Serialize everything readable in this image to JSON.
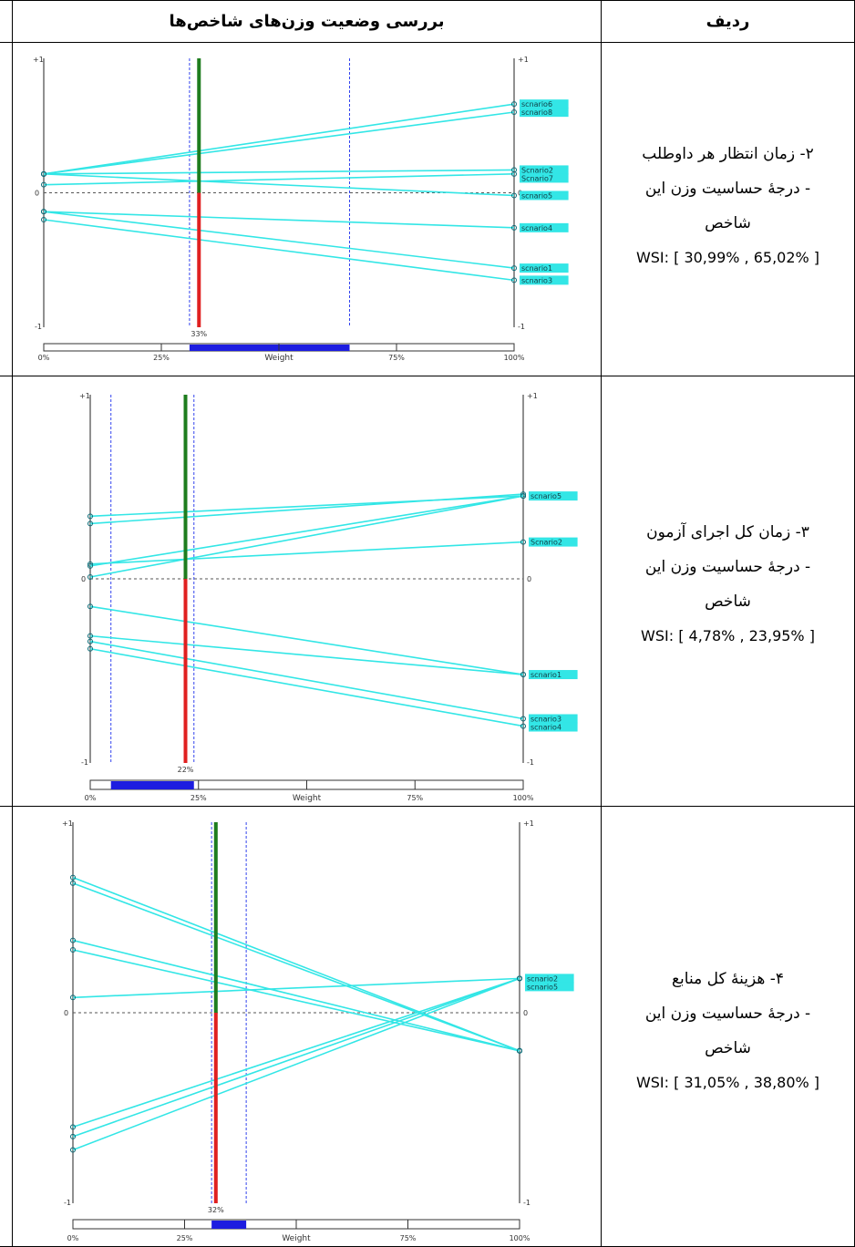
{
  "table": {
    "header_row_label": "ردیف",
    "header_chart": "بررسی وضعیت وزن‌های شاخص‌ها"
  },
  "rows": [
    {
      "title": "۲- زمان انتظار هر داوطلب",
      "line2": "- درجهٔ حساسیت وزن این",
      "line3": "شاخص",
      "wsi": "WSI: [ 30,99% , 65,02% ]"
    },
    {
      "title": "۳- زمان کل اجرای آزمون",
      "line2": "- درجهٔ حساسیت وزن این",
      "line3": "شاخص",
      "wsi": "WSI: [ 4,78% , 23,95% ]"
    },
    {
      "title": "۴- هزینهٔ کل منابع",
      "line2": "- درجهٔ حساسیت وزن این",
      "line3": "شاخص",
      "wsi": "WSI: [ 31,05% , 38,80% ]"
    }
  ],
  "chart_data": [
    {
      "type": "line",
      "xlabel": "Weight",
      "x_ticks": [
        "0%",
        "25%",
        "75%",
        "100%"
      ],
      "y_ticks": [
        "+1",
        "0",
        "-1"
      ],
      "xlim": [
        0,
        100
      ],
      "ylim": [
        -1,
        1
      ],
      "current_weight": 33,
      "current_weight_label": "33%",
      "wsi_range": [
        30.99,
        65.02
      ],
      "series": [
        {
          "name": "scnario6",
          "x": [
            0,
            100
          ],
          "y": [
            0.14,
            0.66
          ]
        },
        {
          "name": "scnario8",
          "x": [
            0,
            100
          ],
          "y": [
            0.14,
            0.6
          ]
        },
        {
          "name": "Scnario2",
          "x": [
            0,
            100
          ],
          "y": [
            0.14,
            0.17
          ]
        },
        {
          "name": "Scnario7",
          "x": [
            0,
            100
          ],
          "y": [
            0.06,
            0.14
          ]
        },
        {
          "name": "scnario5",
          "x": [
            0,
            100
          ],
          "y": [
            0.14,
            -0.02
          ]
        },
        {
          "name": "scnario4",
          "x": [
            0,
            100
          ],
          "y": [
            -0.14,
            -0.26
          ]
        },
        {
          "name": "scnario1",
          "x": [
            0,
            100
          ],
          "y": [
            -0.14,
            -0.56
          ]
        },
        {
          "name": "scnario3",
          "x": [
            0,
            100
          ],
          "y": [
            -0.2,
            -0.65
          ]
        }
      ]
    },
    {
      "type": "line",
      "xlabel": "Weight",
      "x_ticks": [
        "0%",
        "25%",
        "75%",
        "100%"
      ],
      "y_ticks": [
        "+1",
        "0",
        "-1"
      ],
      "xlim": [
        0,
        100
      ],
      "ylim": [
        -1,
        1
      ],
      "current_weight": 22,
      "current_weight_label": "22%",
      "wsi_range": [
        4.78,
        23.95
      ],
      "series": [
        {
          "name": "scnario5",
          "x": [
            0,
            100
          ],
          "y": [
            0.34,
            0.45
          ]
        },
        {
          "name": "",
          "x": [
            0,
            100
          ],
          "y": [
            0.3,
            0.46
          ]
        },
        {
          "name": "Scnario2",
          "x": [
            0,
            100
          ],
          "y": [
            0.08,
            0.2
          ]
        },
        {
          "name": "",
          "x": [
            0,
            100
          ],
          "y": [
            0.07,
            0.45
          ]
        },
        {
          "name": "",
          "x": [
            0,
            100
          ],
          "y": [
            0.01,
            0.45
          ]
        },
        {
          "name": "scnario1",
          "x": [
            0,
            100
          ],
          "y": [
            -0.15,
            -0.52
          ]
        },
        {
          "name": "",
          "x": [
            0,
            100
          ],
          "y": [
            -0.31,
            -0.52
          ]
        },
        {
          "name": "scnario3",
          "x": [
            0,
            100
          ],
          "y": [
            -0.34,
            -0.76
          ]
        },
        {
          "name": "scnario4",
          "x": [
            0,
            100
          ],
          "y": [
            -0.38,
            -0.8
          ]
        }
      ]
    },
    {
      "type": "line",
      "xlabel": "Weight",
      "x_ticks": [
        "0%",
        "25%",
        "75%",
        "100%"
      ],
      "y_ticks": [
        "+1",
        "0",
        "-1"
      ],
      "xlim": [
        0,
        100
      ],
      "ylim": [
        -1,
        1
      ],
      "current_weight": 32,
      "current_weight_label": "32%",
      "wsi_range": [
        31.05,
        38.8
      ],
      "series": [
        {
          "name": "",
          "x": [
            0,
            100
          ],
          "y": [
            0.71,
            -0.2
          ]
        },
        {
          "name": "",
          "x": [
            0,
            100
          ],
          "y": [
            0.68,
            -0.2
          ]
        },
        {
          "name": "",
          "x": [
            0,
            100
          ],
          "y": [
            0.38,
            -0.2
          ]
        },
        {
          "name": "",
          "x": [
            0,
            100
          ],
          "y": [
            0.33,
            -0.2
          ]
        },
        {
          "name": "scnario2",
          "x": [
            0,
            100
          ],
          "y": [
            0.08,
            0.18
          ]
        },
        {
          "name": "scnario5",
          "x": [
            0,
            100
          ],
          "y": [
            -0.6,
            0.18
          ]
        },
        {
          "name": "",
          "x": [
            0,
            100
          ],
          "y": [
            -0.65,
            0.18
          ]
        },
        {
          "name": "",
          "x": [
            0,
            100
          ],
          "y": [
            -0.72,
            0.18
          ]
        }
      ]
    }
  ]
}
